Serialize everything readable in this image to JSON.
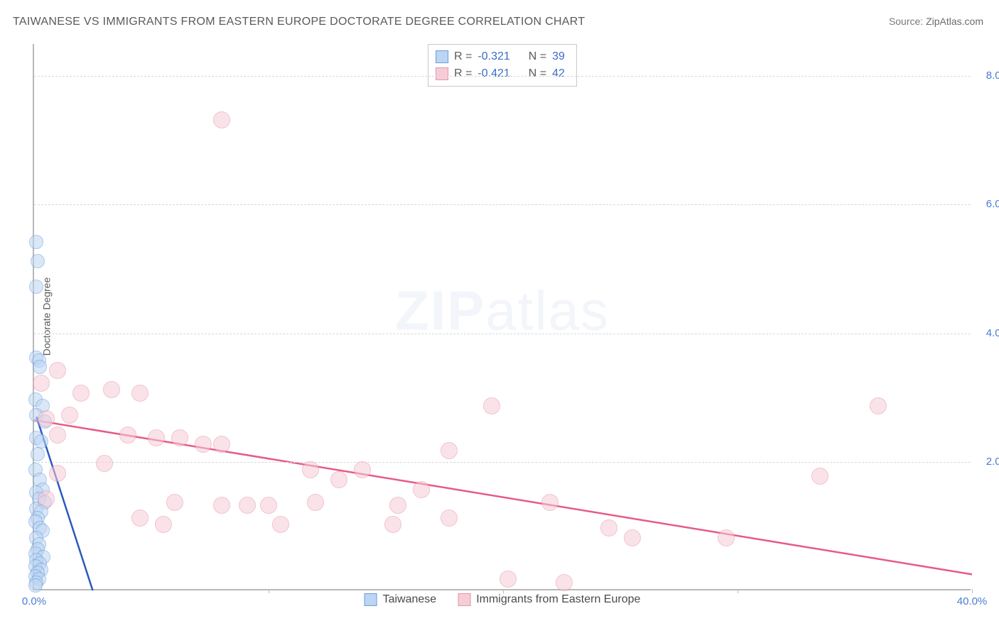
{
  "title": "TAIWANESE VS IMMIGRANTS FROM EASTERN EUROPE DOCTORATE DEGREE CORRELATION CHART",
  "source": {
    "label": "Source:",
    "value": "ZipAtlas.com"
  },
  "ylabel": "Doctorate Degree",
  "watermark": {
    "bold": "ZIP",
    "rest": "atlas"
  },
  "chart": {
    "type": "scatter",
    "background_color": "#ffffff",
    "grid_color": "#d8d8d8",
    "axis_color": "#b8b8b8",
    "tick_color": "#4a7bd0",
    "xlim": [
      0,
      40
    ],
    "ylim": [
      0,
      8.5
    ],
    "xtick_step": 10,
    "ytick_step": 2,
    "xtick_format_suffix": "%",
    "ytick_format_suffix": "%",
    "series": [
      {
        "name": "Taiwanese",
        "fill": "#bcd5f2",
        "stroke": "#6a9de0",
        "line_color": "#2a59c0",
        "line_width": 2.5,
        "marker_radius": 10,
        "marker_opacity": 0.55,
        "R": "-0.321",
        "N": "39",
        "trend": {
          "x1": 0.1,
          "y1": 2.7,
          "x2": 2.5,
          "y2": 0.0
        },
        "points": [
          [
            0.1,
            5.4
          ],
          [
            0.15,
            5.1
          ],
          [
            0.1,
            4.7
          ],
          [
            0.1,
            3.6
          ],
          [
            0.2,
            3.55
          ],
          [
            0.25,
            3.45
          ],
          [
            0.05,
            2.95
          ],
          [
            0.35,
            2.85
          ],
          [
            0.1,
            2.7
          ],
          [
            0.45,
            2.6
          ],
          [
            0.1,
            2.35
          ],
          [
            0.3,
            2.3
          ],
          [
            0.15,
            2.1
          ],
          [
            0.05,
            1.85
          ],
          [
            0.25,
            1.7
          ],
          [
            0.35,
            1.55
          ],
          [
            0.1,
            1.5
          ],
          [
            0.2,
            1.4
          ],
          [
            0.45,
            1.35
          ],
          [
            0.1,
            1.25
          ],
          [
            0.3,
            1.2
          ],
          [
            0.15,
            1.1
          ],
          [
            0.05,
            1.05
          ],
          [
            0.25,
            0.95
          ],
          [
            0.35,
            0.9
          ],
          [
            0.1,
            0.8
          ],
          [
            0.2,
            0.7
          ],
          [
            0.15,
            0.62
          ],
          [
            0.05,
            0.55
          ],
          [
            0.4,
            0.5
          ],
          [
            0.1,
            0.45
          ],
          [
            0.25,
            0.4
          ],
          [
            0.05,
            0.35
          ],
          [
            0.3,
            0.3
          ],
          [
            0.15,
            0.25
          ],
          [
            0.05,
            0.2
          ],
          [
            0.2,
            0.15
          ],
          [
            0.1,
            0.1
          ],
          [
            0.05,
            0.05
          ]
        ]
      },
      {
        "name": "Immigrants from Eastern Europe",
        "fill": "#f6cdd7",
        "stroke": "#e693aa",
        "line_color": "#e65a87",
        "line_width": 2.5,
        "marker_radius": 12,
        "marker_opacity": 0.55,
        "R": "-0.421",
        "N": "42",
        "trend": {
          "x1": 0.0,
          "y1": 2.65,
          "x2": 40.0,
          "y2": 0.25
        },
        "points": [
          [
            8.0,
            7.3
          ],
          [
            1.0,
            3.4
          ],
          [
            0.3,
            3.2
          ],
          [
            2.0,
            3.05
          ],
          [
            3.3,
            3.1
          ],
          [
            4.5,
            3.05
          ],
          [
            0.5,
            2.65
          ],
          [
            1.5,
            2.7
          ],
          [
            19.5,
            2.85
          ],
          [
            1.0,
            2.4
          ],
          [
            4.0,
            2.4
          ],
          [
            5.2,
            2.35
          ],
          [
            6.2,
            2.35
          ],
          [
            7.2,
            2.25
          ],
          [
            8.0,
            2.25
          ],
          [
            36.0,
            2.85
          ],
          [
            3.0,
            1.95
          ],
          [
            17.7,
            2.15
          ],
          [
            33.5,
            1.75
          ],
          [
            6.0,
            1.35
          ],
          [
            8.0,
            1.3
          ],
          [
            9.1,
            1.3
          ],
          [
            10.0,
            1.3
          ],
          [
            12.0,
            1.35
          ],
          [
            11.8,
            1.85
          ],
          [
            14.0,
            1.85
          ],
          [
            15.5,
            1.3
          ],
          [
            4.5,
            1.1
          ],
          [
            13.0,
            1.7
          ],
          [
            16.5,
            1.55
          ],
          [
            17.7,
            1.1
          ],
          [
            22.0,
            1.35
          ],
          [
            24.5,
            0.95
          ],
          [
            1.0,
            1.8
          ],
          [
            25.5,
            0.8
          ],
          [
            29.5,
            0.8
          ],
          [
            5.5,
            1.0
          ],
          [
            10.5,
            1.0
          ],
          [
            15.3,
            1.0
          ],
          [
            20.2,
            0.15
          ],
          [
            22.6,
            0.1
          ],
          [
            0.5,
            1.4
          ]
        ]
      }
    ]
  },
  "bottom_legend": [
    {
      "label": "Taiwanese",
      "series_idx": 0
    },
    {
      "label": "Immigrants from Eastern Europe",
      "series_idx": 1
    }
  ]
}
